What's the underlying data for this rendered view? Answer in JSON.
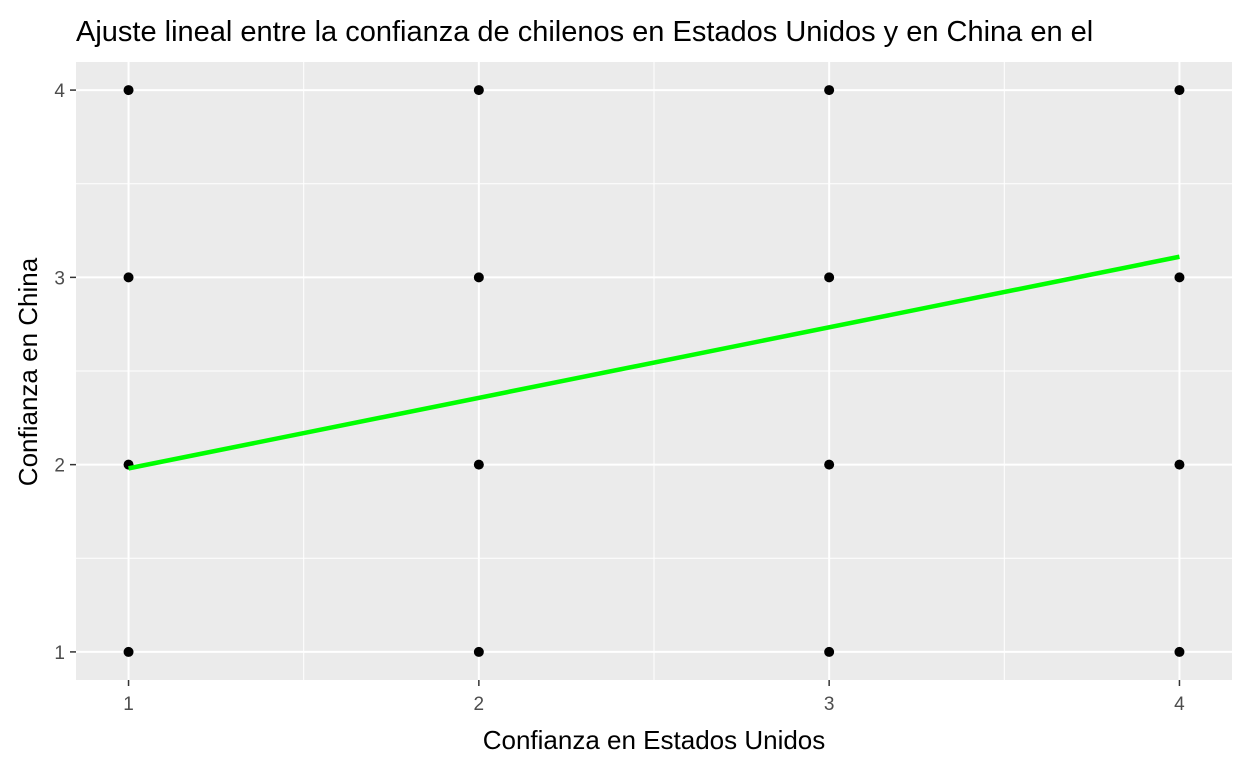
{
  "chart_data": {
    "type": "scatter",
    "title": "Ajuste lineal entre la confianza de chilenos en Estados Unidos y en China en el",
    "xlabel": "Confianza en Estados Unidos",
    "ylabel": "Confianza en China",
    "xlim": [
      0.85,
      4.15
    ],
    "ylim": [
      0.85,
      4.15
    ],
    "x_ticks": [
      "1",
      "2",
      "3",
      "4"
    ],
    "y_ticks": [
      "1",
      "2",
      "3",
      "4"
    ],
    "grid": true,
    "legend": "none",
    "points": [
      {
        "x": 1,
        "y": 1
      },
      {
        "x": 1,
        "y": 2
      },
      {
        "x": 1,
        "y": 3
      },
      {
        "x": 1,
        "y": 4
      },
      {
        "x": 2,
        "y": 1
      },
      {
        "x": 2,
        "y": 2
      },
      {
        "x": 2,
        "y": 3
      },
      {
        "x": 2,
        "y": 4
      },
      {
        "x": 3,
        "y": 1
      },
      {
        "x": 3,
        "y": 2
      },
      {
        "x": 3,
        "y": 3
      },
      {
        "x": 3,
        "y": 4
      },
      {
        "x": 4,
        "y": 1
      },
      {
        "x": 4,
        "y": 2
      },
      {
        "x": 4,
        "y": 3
      },
      {
        "x": 4,
        "y": 4
      }
    ],
    "fit_line": {
      "x": [
        1,
        4
      ],
      "y": [
        1.98,
        3.11
      ]
    },
    "colors": {
      "panel": "#ebebeb",
      "grid": "#ffffff",
      "point": "#000000",
      "fit_line": "#00ff00",
      "tick_label": "#4d4d4d"
    }
  }
}
